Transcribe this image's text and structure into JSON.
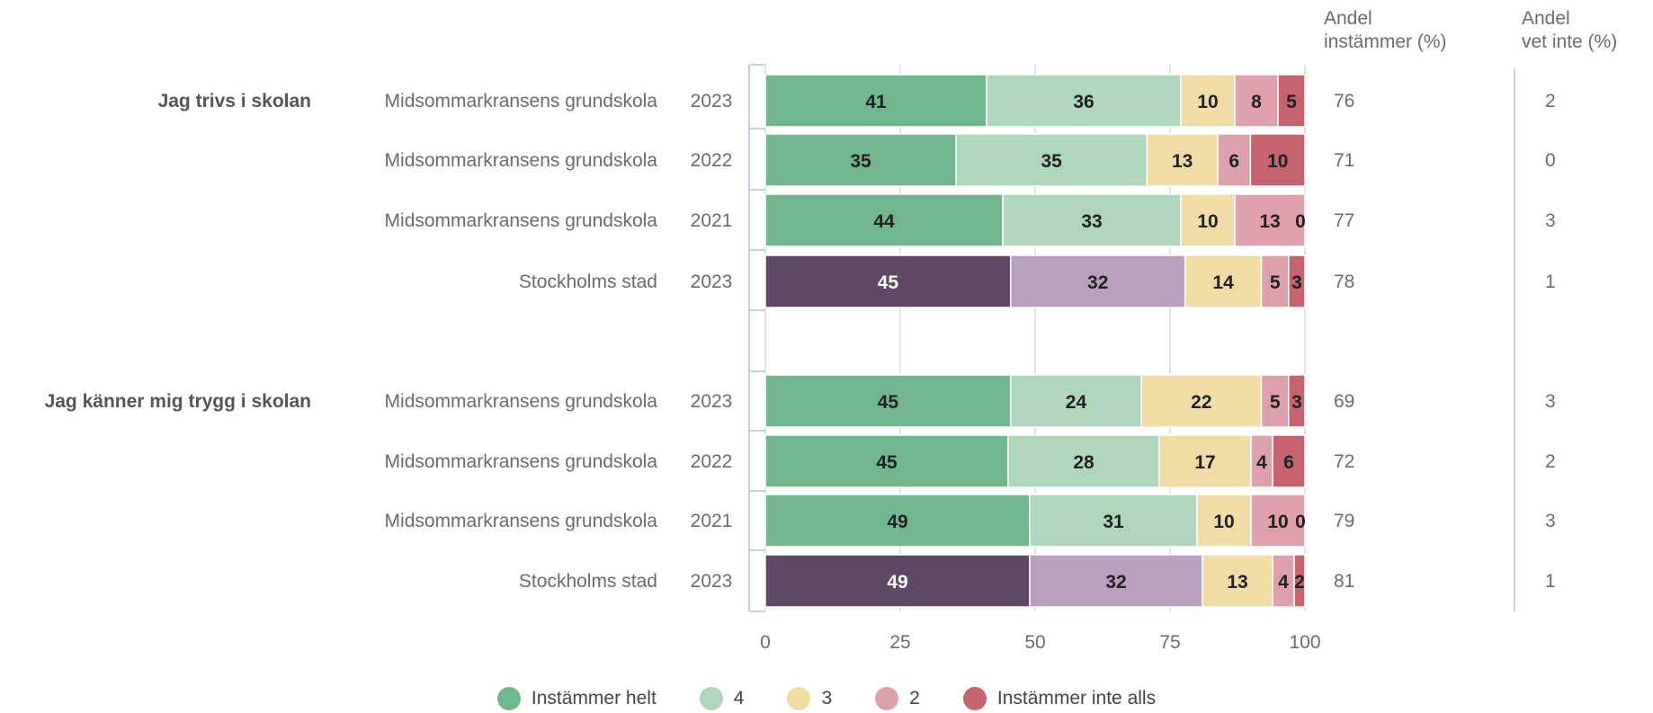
{
  "headers": {
    "share_agree": "Andel\ninstämmer (%)",
    "share_dont_know": "Andel\nvet inte (%)"
  },
  "legend": [
    {
      "label": "Instämmer helt",
      "color": "#71b68d"
    },
    {
      "label": "4",
      "color": "#add6bb"
    },
    {
      "label": "3",
      "color": "#f2dca5"
    },
    {
      "label": "2",
      "color": "#dea1ab"
    },
    {
      "label": "Instämmer inte alls",
      "color": "#c5636f"
    }
  ],
  "chart_data": {
    "type": "bar",
    "orientation": "horizontal",
    "stacked": true,
    "xlim": [
      0,
      100
    ],
    "xticks": [
      "0",
      "25",
      "50",
      "75",
      "100"
    ],
    "grid": true,
    "legend_position": "bottom",
    "series_names": [
      "Instämmer helt",
      "4",
      "3",
      "2",
      "Instämmer inte alls"
    ],
    "colors": {
      "green": [
        "#71b68d",
        "#add6bb",
        "#f2dca5",
        "#dea1ab",
        "#c5636f"
      ],
      "purple": [
        "#5f4766",
        "#b9a1bd",
        "#f2dca5",
        "#dea1ab",
        "#c5636f"
      ]
    },
    "groups": [
      {
        "question": "Jag trivs i skolan",
        "rows": [
          {
            "unit": "Midsommarkransens grundskola",
            "year": "2023",
            "values": [
              41,
              36,
              10,
              8,
              5
            ],
            "agree": "76",
            "dont_know": "2",
            "palette": "green"
          },
          {
            "unit": "Midsommarkransens grundskola",
            "year": "2022",
            "values": [
              35,
              35,
              13,
              6,
              10
            ],
            "agree": "71",
            "dont_know": "0",
            "palette": "green"
          },
          {
            "unit": "Midsommarkransens grundskola",
            "year": "2021",
            "values": [
              44,
              33,
              10,
              13,
              0
            ],
            "agree": "77",
            "dont_know": "3",
            "palette": "green"
          },
          {
            "unit": "Stockholms stad",
            "year": "2023",
            "values": [
              45,
              32,
              14,
              5,
              3
            ],
            "agree": "78",
            "dont_know": "1",
            "palette": "purple"
          }
        ]
      },
      {
        "question": "Jag känner mig trygg i skolan",
        "rows": [
          {
            "unit": "Midsommarkransens grundskola",
            "year": "2023",
            "values": [
              45,
              24,
              22,
              5,
              3
            ],
            "agree": "69",
            "dont_know": "3",
            "palette": "green"
          },
          {
            "unit": "Midsommarkransens grundskola",
            "year": "2022",
            "values": [
              45,
              28,
              17,
              4,
              6
            ],
            "agree": "72",
            "dont_know": "2",
            "palette": "green"
          },
          {
            "unit": "Midsommarkransens grundskola",
            "year": "2021",
            "values": [
              49,
              31,
              10,
              10,
              0
            ],
            "agree": "79",
            "dont_know": "3",
            "palette": "green"
          },
          {
            "unit": "Stockholms stad",
            "year": "2023",
            "values": [
              49,
              32,
              13,
              4,
              2
            ],
            "agree": "81",
            "dont_know": "1",
            "palette": "purple"
          }
        ]
      }
    ]
  }
}
